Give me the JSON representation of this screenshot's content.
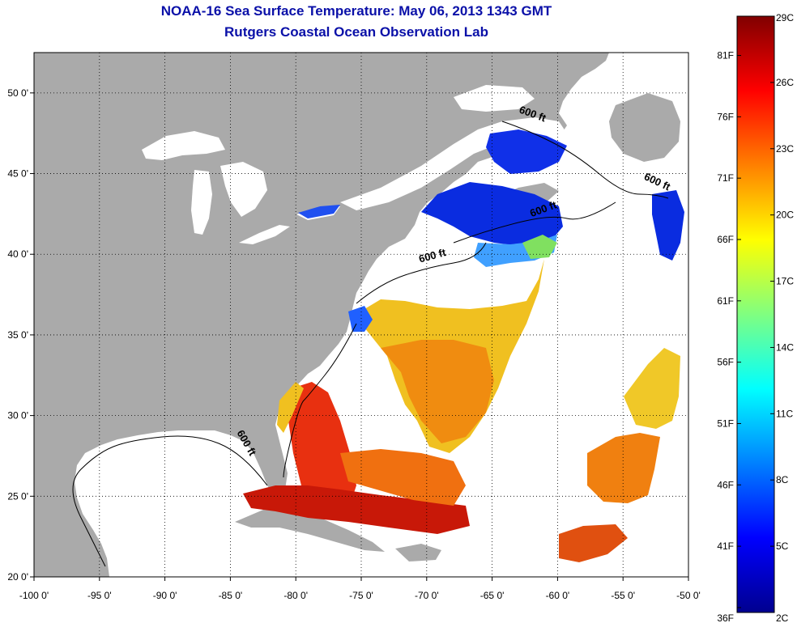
{
  "title": "NOAA-16 Sea Surface Temperature:  May 06, 2013 1343 GMT",
  "subtitle": "Rutgers Coastal Ocean Observation Lab",
  "map": {
    "lon_range": [
      -100,
      -50
    ],
    "lat_range": [
      20,
      52.5
    ],
    "lon_ticks": [
      {
        "v": -100,
        "label": "-100 0'"
      },
      {
        "v": -95,
        "label": "-95 0'"
      },
      {
        "v": -90,
        "label": "-90 0'"
      },
      {
        "v": -85,
        "label": "-85 0'"
      },
      {
        "v": -80,
        "label": "-80 0'"
      },
      {
        "v": -75,
        "label": "-75 0'"
      },
      {
        "v": -70,
        "label": "-70 0'"
      },
      {
        "v": -65,
        "label": "-65 0'"
      },
      {
        "v": -60,
        "label": "-60 0'"
      },
      {
        "v": -55,
        "label": "-55 0'"
      },
      {
        "v": -50,
        "label": "-50 0'"
      }
    ],
    "lat_ticks": [
      {
        "v": 20,
        "label": "20 0'"
      },
      {
        "v": 25,
        "label": "25 0'"
      },
      {
        "v": 30,
        "label": "30 0'"
      },
      {
        "v": 35,
        "label": "35 0'"
      },
      {
        "v": 40,
        "label": "40 0'"
      },
      {
        "v": 45,
        "label": "45 0'"
      },
      {
        "v": 50,
        "label": "50 0'"
      }
    ],
    "grid": "dotted",
    "contour_labels": [
      {
        "text": "600 ft",
        "lon": -62,
        "lat": 48.5,
        "angle": 20
      },
      {
        "text": "600 ft",
        "lon": -52.5,
        "lat": 44.3,
        "angle": 25
      },
      {
        "text": "600 ft",
        "lon": -61,
        "lat": 42.6,
        "angle": -20
      },
      {
        "text": "600 ft",
        "lon": -69.5,
        "lat": 39.7,
        "angle": -15
      },
      {
        "text": "600 ft",
        "lon": -84,
        "lat": 28.2,
        "angle": 60
      }
    ]
  },
  "colorbar": {
    "orientation": "vertical",
    "celsius_labels": [
      {
        "v": 2,
        "label": "2C"
      },
      {
        "v": 5,
        "label": "5C"
      },
      {
        "v": 8,
        "label": "8C"
      },
      {
        "v": 11,
        "label": "11C"
      },
      {
        "v": 14,
        "label": "14C"
      },
      {
        "v": 17,
        "label": "17C"
      },
      {
        "v": 20,
        "label": "20C"
      },
      {
        "v": 23,
        "label": "23C"
      },
      {
        "v": 26,
        "label": "26C"
      },
      {
        "v": 29,
        "label": "29C"
      }
    ],
    "fahrenheit_labels": [
      {
        "v": 36,
        "label": "36F"
      },
      {
        "v": 41,
        "label": "41F"
      },
      {
        "v": 46,
        "label": "46F"
      },
      {
        "v": 51,
        "label": "51F"
      },
      {
        "v": 56,
        "label": "56F"
      },
      {
        "v": 61,
        "label": "61F"
      },
      {
        "v": 66,
        "label": "66F"
      },
      {
        "v": 71,
        "label": "71F"
      },
      {
        "v": 76,
        "label": "76F"
      },
      {
        "v": 81,
        "label": "81F"
      }
    ],
    "stops": [
      "#00008f",
      "#0000ff",
      "#0080ff",
      "#00ffff",
      "#80ff80",
      "#ffff00",
      "#ff8000",
      "#ff0000",
      "#800000"
    ]
  },
  "colors": {
    "land": "#aaaaaa",
    "ocean": "#ffffff",
    "title": "#0a10a8"
  }
}
